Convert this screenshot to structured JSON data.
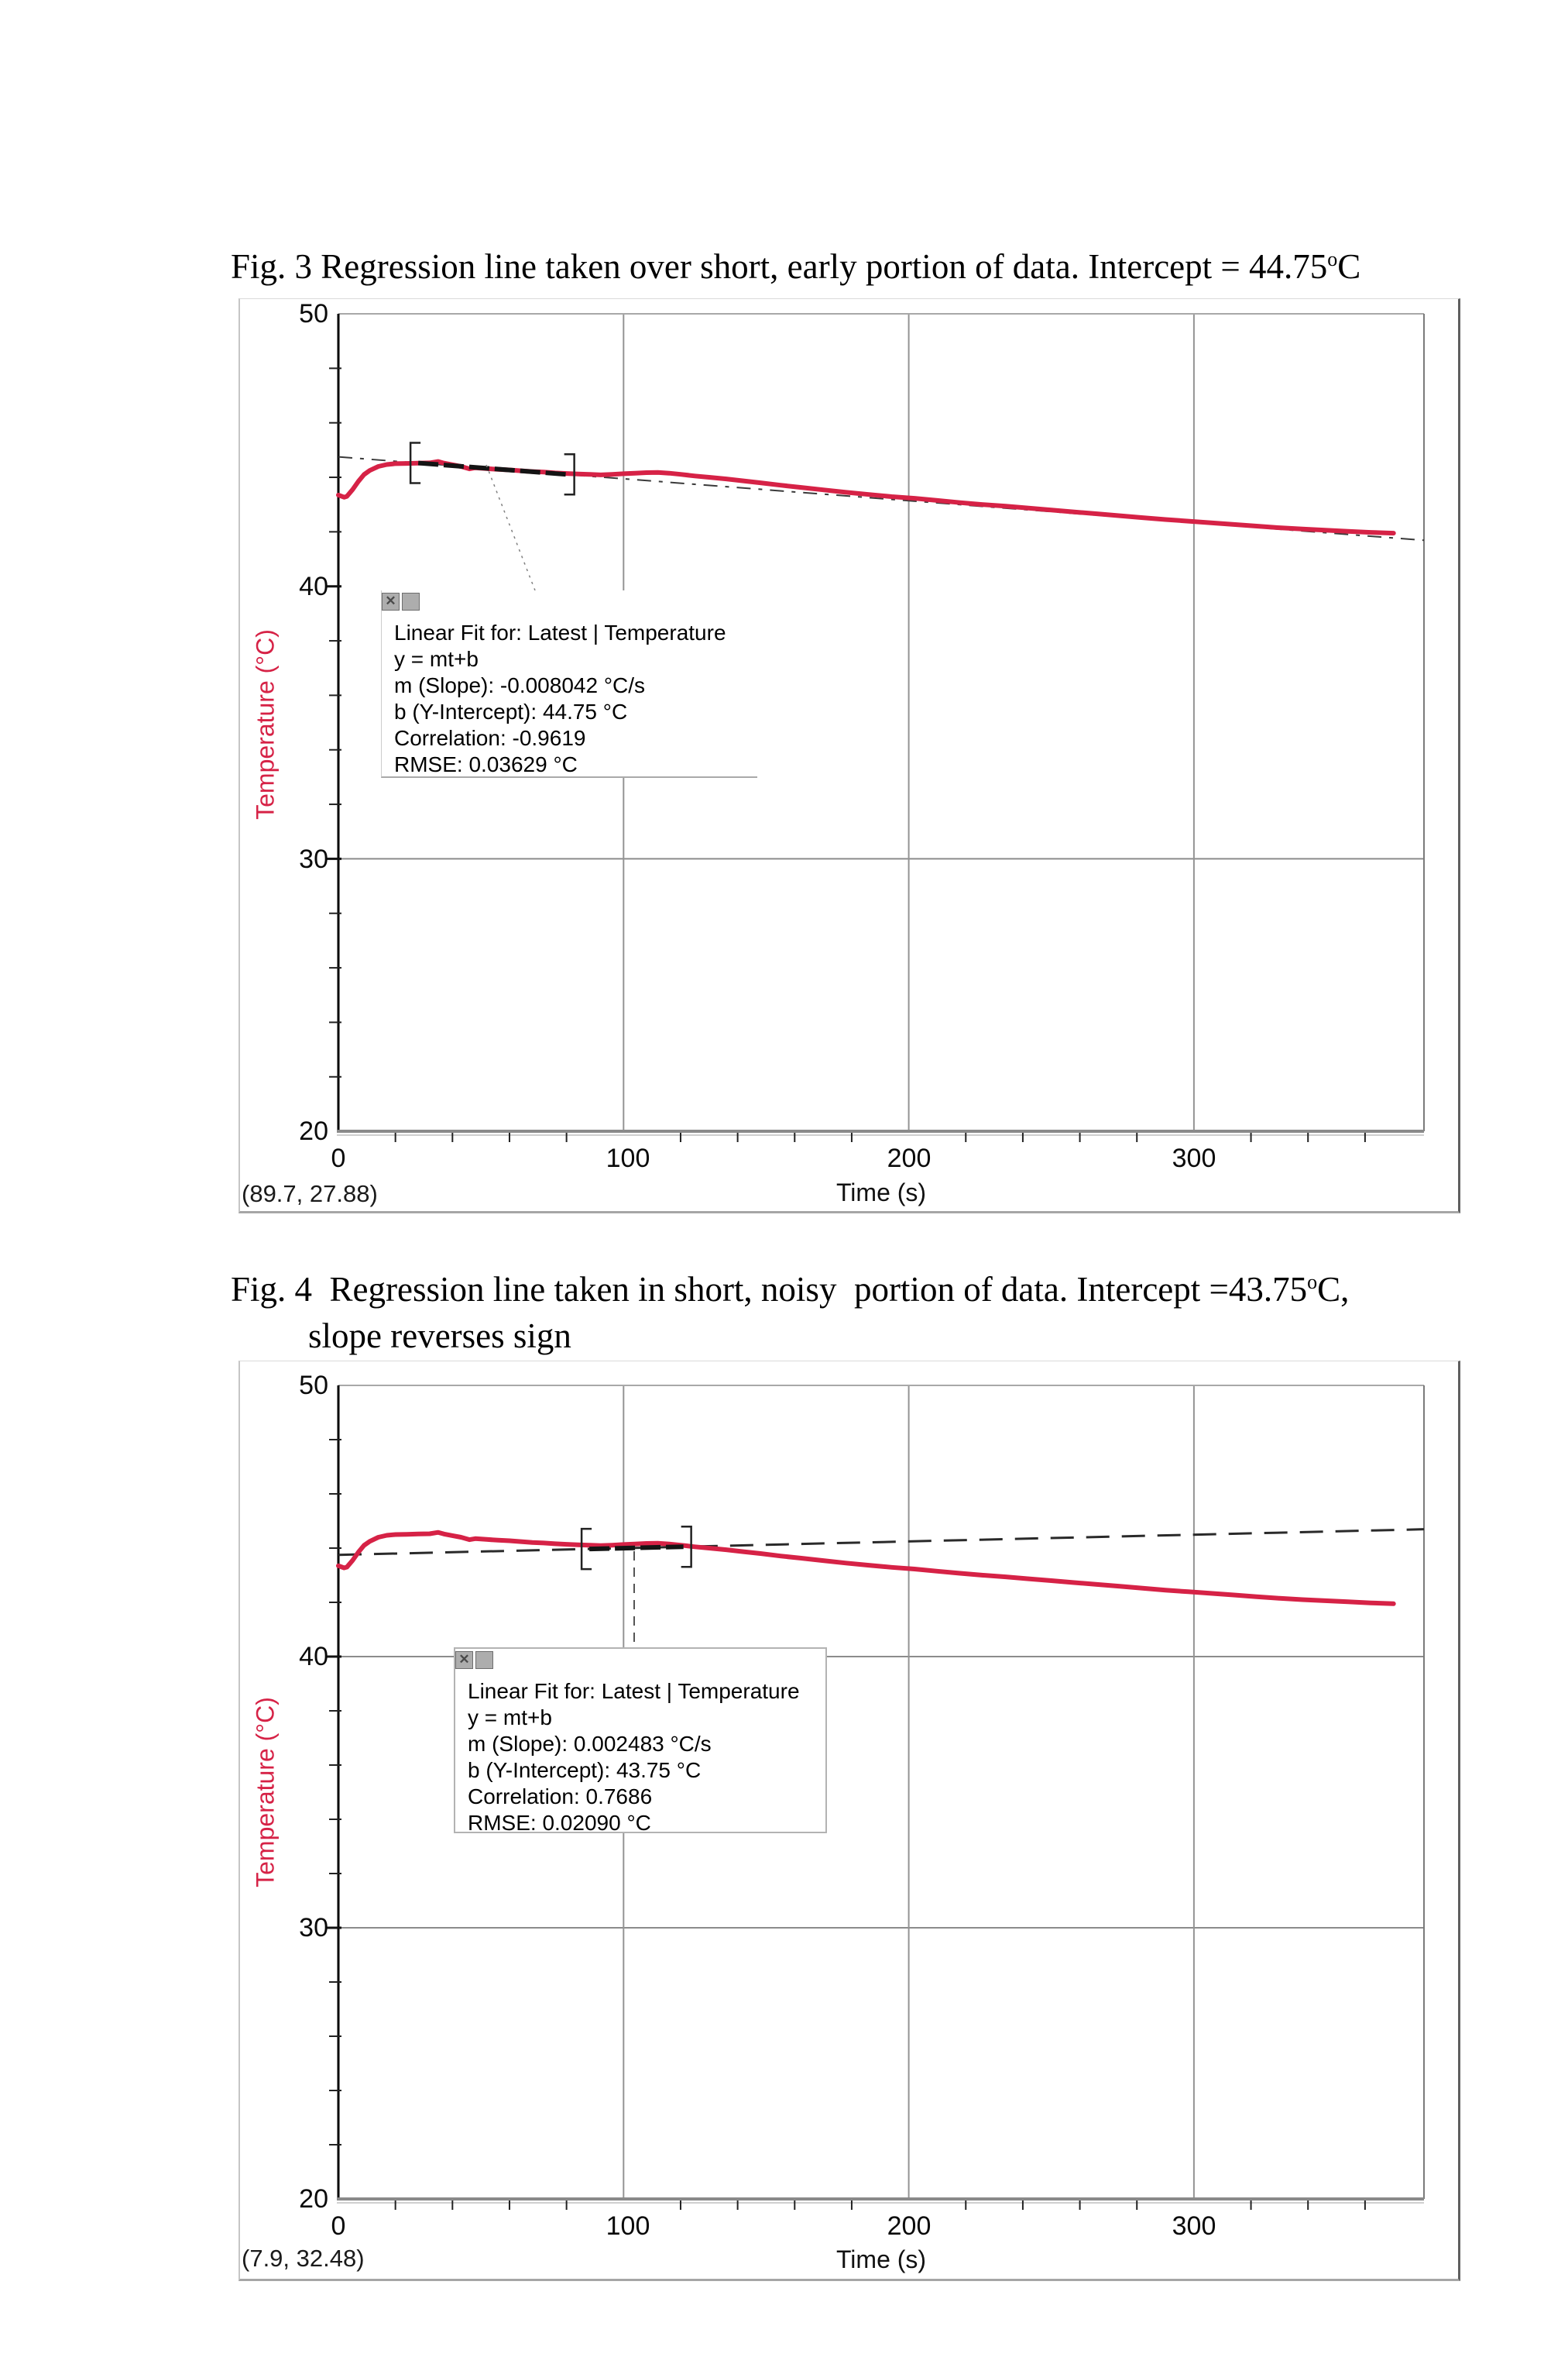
{
  "page": {
    "background": "#ffffff"
  },
  "figure3": {
    "caption": {
      "label": "Fig. 3",
      "body": " Regression line taken over short, early portion of data. Intercept = 44.75",
      "sup": "o",
      "tail": "C"
    },
    "y_ticks": [
      "50",
      "40",
      "30",
      "20"
    ],
    "x_ticks": [
      "0",
      "100",
      "200",
      "300"
    ],
    "x_axis_label": "Time (s)",
    "y_axis_label": "Temperature (°C)",
    "cursor_readout": "(89.7, 27.88)",
    "fit_box": {
      "icons": {
        "close": "✕",
        "panel": ""
      },
      "lines": [
        "Linear Fit for: Latest | Temperature",
        "y = mt+b",
        "m (Slope): -0.008042 °C/s",
        "b (Y-Intercept): 44.75 °C",
        "Correlation: -0.9619",
        "RMSE: 0.03629 °C"
      ]
    }
  },
  "figure4": {
    "caption": {
      "label": "Fig. 4",
      "body": "  Regression line taken in short, noisy  portion of data. Intercept =43.75",
      "sup": "o",
      "tail": "C,",
      "line2": "slope reverses sign"
    },
    "y_ticks": [
      "50",
      "40",
      "30",
      "20"
    ],
    "x_ticks": [
      "0",
      "100",
      "200",
      "300"
    ],
    "x_axis_label": "Time (s)",
    "y_axis_label": "Temperature (°C)",
    "cursor_readout": "(7.9, 32.48)",
    "fit_box": {
      "icons": {
        "close": "✕",
        "panel": ""
      },
      "lines": [
        "Linear Fit for: Latest | Temperature",
        "y = mt+b",
        "m (Slope): 0.002483 °C/s",
        "b (Y-Intercept): 43.75 °C",
        "Correlation: 0.7686",
        "RMSE: 0.02090 °C"
      ]
    }
  },
  "chart_data": {
    "shared_series": {
      "name": "Latest | Temperature",
      "color": "#d62246",
      "points": [
        [
          0,
          43.35
        ],
        [
          2,
          43.27
        ],
        [
          3,
          43.3
        ],
        [
          5,
          43.55
        ],
        [
          7,
          43.85
        ],
        [
          9,
          44.1
        ],
        [
          11,
          44.25
        ],
        [
          14,
          44.4
        ],
        [
          17,
          44.47
        ],
        [
          20,
          44.5
        ],
        [
          24,
          44.51
        ],
        [
          28,
          44.52
        ],
        [
          32,
          44.53
        ],
        [
          35,
          44.58
        ],
        [
          37,
          44.52
        ],
        [
          40,
          44.46
        ],
        [
          43,
          44.4
        ],
        [
          46,
          44.31
        ],
        [
          48,
          44.35
        ],
        [
          52,
          44.32
        ],
        [
          56,
          44.29
        ],
        [
          60,
          44.27
        ],
        [
          64,
          44.24
        ],
        [
          68,
          44.21
        ],
        [
          72,
          44.19
        ],
        [
          76,
          44.16
        ],
        [
          80,
          44.14
        ],
        [
          84,
          44.12
        ],
        [
          88,
          44.11
        ],
        [
          92,
          44.09
        ],
        [
          96,
          44.11
        ],
        [
          100,
          44.13
        ],
        [
          104,
          44.15
        ],
        [
          108,
          44.17
        ],
        [
          112,
          44.18
        ],
        [
          116,
          44.15
        ],
        [
          120,
          44.11
        ],
        [
          125,
          44.05
        ],
        [
          130,
          44.0
        ],
        [
          136,
          43.94
        ],
        [
          142,
          43.87
        ],
        [
          148,
          43.8
        ],
        [
          155,
          43.71
        ],
        [
          162,
          43.63
        ],
        [
          170,
          43.54
        ],
        [
          178,
          43.45
        ],
        [
          186,
          43.37
        ],
        [
          194,
          43.29
        ],
        [
          202,
          43.23
        ],
        [
          210,
          43.15
        ],
        [
          218,
          43.07
        ],
        [
          226,
          43.0
        ],
        [
          234,
          42.94
        ],
        [
          242,
          42.87
        ],
        [
          250,
          42.8
        ],
        [
          258,
          42.73
        ],
        [
          266,
          42.66
        ],
        [
          274,
          42.59
        ],
        [
          282,
          42.52
        ],
        [
          290,
          42.45
        ],
        [
          298,
          42.39
        ],
        [
          306,
          42.33
        ],
        [
          314,
          42.27
        ],
        [
          322,
          42.21
        ],
        [
          330,
          42.15
        ],
        [
          338,
          42.1
        ],
        [
          346,
          42.06
        ],
        [
          354,
          42.02
        ],
        [
          362,
          41.98
        ],
        [
          370,
          41.95
        ]
      ]
    },
    "figures": [
      {
        "id": "fig3",
        "type": "line",
        "title": "Fig. 3 Regression line taken over short, early portion of data. Intercept = 44.75°C",
        "xlabel": "Time (s)",
        "ylabel": "Temperature (°C)",
        "xlim": [
          0,
          380
        ],
        "ylim": [
          20,
          50
        ],
        "x_ticks": [
          0,
          100,
          200,
          300
        ],
        "y_ticks": [
          20,
          30,
          40,
          50
        ],
        "grid": "on",
        "legend_position": "none",
        "fit": {
          "label": "Linear Fit for: Latest | Temperature",
          "equation": "y = mt+b",
          "slope_c_per_s": -0.008042,
          "intercept_c": 44.75,
          "correlation": -0.9619,
          "rmse_c": 0.03629,
          "selection_range_s": [
            28,
            80
          ]
        },
        "cursor": [
          89.7,
          27.88
        ]
      },
      {
        "id": "fig4",
        "type": "line",
        "title": "Fig. 4 Regression line taken in short, noisy portion of data. Intercept =43.75°C, slope reverses sign",
        "xlabel": "Time (s)",
        "ylabel": "Temperature (°C)",
        "xlim": [
          0,
          380
        ],
        "ylim": [
          20,
          50
        ],
        "x_ticks": [
          0,
          100,
          200,
          300
        ],
        "y_ticks": [
          20,
          30,
          40,
          50
        ],
        "grid": "on",
        "legend_position": "none",
        "fit": {
          "label": "Linear Fit for: Latest | Temperature",
          "equation": "y = mt+b",
          "slope_c_per_s": 0.002483,
          "intercept_c": 43.75,
          "correlation": 0.7686,
          "rmse_c": 0.0209,
          "selection_range_s": [
            88,
            121
          ]
        },
        "cursor": [
          7.9,
          32.48
        ]
      }
    ]
  }
}
